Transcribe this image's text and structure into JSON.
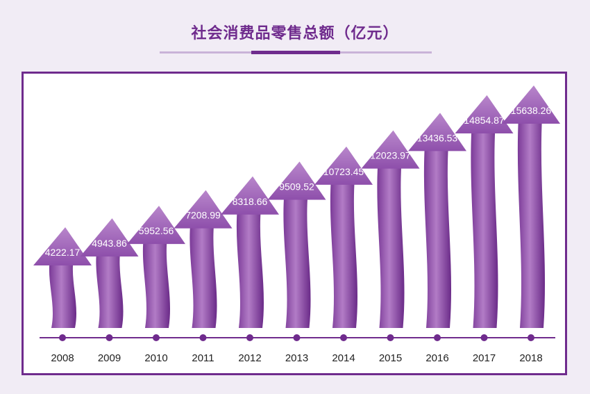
{
  "title": "社会消费品零售总额（亿元）",
  "colors": {
    "primary": "#6f2b8d",
    "light": "#b07bc4",
    "background": "#f1ecf5",
    "frame": "#6f2b8d"
  },
  "chart_data": {
    "type": "bar",
    "title": "社会消费品零售总额（亿元）",
    "categories": [
      "2008",
      "2009",
      "2010",
      "2011",
      "2012",
      "2013",
      "2014",
      "2015",
      "2016",
      "2017",
      "2018"
    ],
    "values": [
      4222.17,
      4943.86,
      5952.56,
      7208.99,
      8318.66,
      9509.52,
      10723.45,
      12023.97,
      13436.53,
      14854.87,
      15638.26
    ],
    "value_labels": [
      "4222.17",
      "4943.86",
      "5952.56",
      "7208.99",
      "8318.66",
      "9509.52",
      "10723.45",
      "12023.97",
      "13436.53",
      "14854.87",
      "15638.26"
    ],
    "xlabel": "",
    "ylabel": "",
    "grid": false,
    "legend": "none"
  }
}
